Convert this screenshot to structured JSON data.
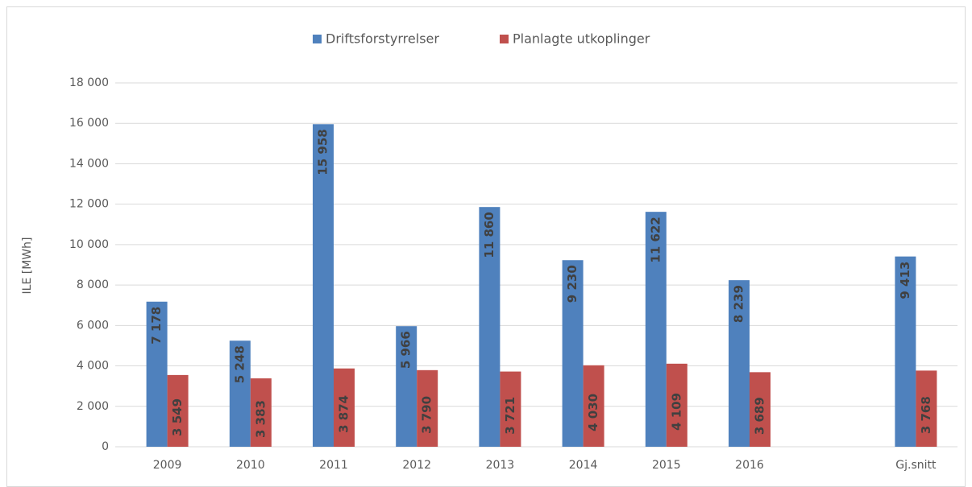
{
  "chart_data": {
    "type": "bar",
    "y_label": "ILE [MWh]",
    "categories": [
      "2009",
      "2010",
      "2011",
      "2012",
      "2013",
      "2014",
      "2015",
      "2016",
      null,
      "Gj.snitt"
    ],
    "series": [
      {
        "name": "Driftsforstyrrelser",
        "color": "#4f81bd",
        "values": [
          7178,
          5248,
          15958,
          5966,
          11860,
          9230,
          11622,
          8239,
          null,
          9413
        ],
        "value_labels": [
          "7 178",
          "5 248",
          "15 958",
          "5 966",
          "11 860",
          "9 230",
          "11 622",
          "8 239",
          null,
          "9 413"
        ]
      },
      {
        "name": "Planlagte utkoplinger",
        "color": "#c0504d",
        "values": [
          3549,
          3383,
          3874,
          3790,
          3721,
          4030,
          4109,
          3689,
          null,
          3768
        ],
        "value_labels": [
          "3 549",
          "3 383",
          "3 874",
          "3 790",
          "3 721",
          "4 030",
          "4 109",
          "3 689",
          null,
          "3 768"
        ]
      }
    ],
    "ylim": [
      0,
      18000
    ],
    "yticks": [
      0,
      {
        "value": 2000,
        "label": "2 000"
      },
      {
        "value": 4000,
        "label": "4 000"
      },
      {
        "value": 6000,
        "label": "6 000"
      },
      {
        "value": 8000,
        "label": "8 000"
      },
      {
        "value": 10000,
        "label": "10 000"
      },
      {
        "value": 12000,
        "label": "12 000"
      },
      {
        "value": 14000,
        "label": "14 000"
      },
      {
        "value": 16000,
        "label": "16 000"
      },
      {
        "value": 18000,
        "label": "18 000"
      }
    ],
    "grid": true,
    "legend": "top"
  }
}
